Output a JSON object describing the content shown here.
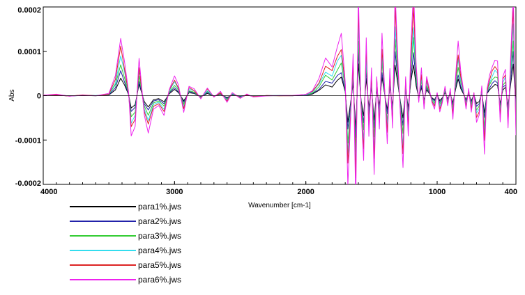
{
  "chart_data": {
    "type": "line",
    "title": "",
    "xlabel": "Wavenumber [cm-1]",
    "ylabel": "Abs",
    "xlim": [
      4000,
      400
    ],
    "ylim": [
      -0.0002,
      0.0002
    ],
    "x_reversed": true,
    "grid": false,
    "legend_position": "bottom-left",
    "x_ticks": [
      {
        "value": 4000,
        "label": "4000"
      },
      {
        "value": 3000,
        "label": "3000"
      },
      {
        "value": 2000,
        "label": "2000"
      },
      {
        "value": 1000,
        "label": "1000"
      },
      {
        "value": 400,
        "label": "400"
      }
    ],
    "y_ticks": [
      {
        "value": 0.0002,
        "label": "0.0002"
      },
      {
        "value": 0.0001,
        "label": "0.0001"
      },
      {
        "value": 0,
        "label": "0"
      },
      {
        "value": -0.0001,
        "label": "-0.0001"
      },
      {
        "value": -0.0002,
        "label": "-0.0002"
      }
    ],
    "zero_line": true,
    "base_shape": {
      "x": [
        4000,
        3900,
        3800,
        3700,
        3600,
        3500,
        3450,
        3410,
        3380,
        3350,
        3330,
        3300,
        3270,
        3230,
        3200,
        3160,
        3120,
        3080,
        3040,
        3000,
        2970,
        2930,
        2890,
        2850,
        2800,
        2750,
        2700,
        2650,
        2600,
        2560,
        2500,
        2450,
        2400,
        2300,
        2200,
        2100,
        2000,
        1950,
        1900,
        1850,
        1800,
        1760,
        1730,
        1700,
        1680,
        1660,
        1640,
        1620,
        1600,
        1580,
        1560,
        1540,
        1520,
        1500,
        1480,
        1460,
        1440,
        1420,
        1400,
        1380,
        1360,
        1340,
        1320,
        1300,
        1280,
        1260,
        1240,
        1220,
        1200,
        1180,
        1160,
        1140,
        1120,
        1100,
        1080,
        1060,
        1040,
        1020,
        1000,
        980,
        960,
        940,
        920,
        900,
        880,
        860,
        840,
        820,
        800,
        780,
        760,
        740,
        720,
        700,
        680,
        660,
        640,
        620,
        600,
        580,
        560,
        540,
        520,
        500,
        480,
        460,
        440,
        420,
        400
      ],
      "shape": [
        0.01,
        0.02,
        -0.01,
        0.01,
        0,
        0.03,
        0.3,
        0.9,
        0.5,
        0.05,
        -0.6,
        -0.45,
        0.55,
        -0.3,
        -0.55,
        -0.2,
        -0.15,
        -0.3,
        0.1,
        0.3,
        0.15,
        -0.25,
        0.15,
        0.1,
        -0.05,
        0.12,
        -0.02,
        0.06,
        -0.1,
        0.05,
        -0.04,
        0.02,
        -0.02,
        0,
        0,
        0,
        0.02,
        0.08,
        0.25,
        0.55,
        0.45,
        0.75,
        0.9,
        0.2,
        -1.3,
        -0.4,
        0.6,
        -1.6,
        1.6,
        -0.2,
        -1.0,
        0.9,
        -0.6,
        0.4,
        -1.2,
        0.3,
        -0.5,
        0.9,
        0.1,
        -0.7,
        0.4,
        -0.5,
        1.6,
        0.6,
        -0.3,
        -1.1,
        0.3,
        -0.6,
        0.7,
        1.6,
        0.5,
        -0.1,
        0.4,
        -0.2,
        0.3,
        0.1,
        -0.1,
        -0.2,
        0.05,
        -0.25,
        -0.1,
        0.15,
        -0.15,
        0.1,
        -0.35,
        0.3,
        0.8,
        0.35,
        0.1,
        -0.2,
        0.1,
        -0.25,
        0.05,
        -0.4,
        -0.3,
        0.15,
        -0.85,
        0.1,
        0.3,
        0.45,
        0.55,
        0.5,
        -0.4,
        0.3,
        0.4,
        -0.5,
        0.6,
        1.6,
        -0.6
      ]
    },
    "series": [
      {
        "name": "para1%.jws",
        "color": "#000000",
        "scale": 4.5e-05
      },
      {
        "name": "para2%.jws",
        "color": "#2222aa",
        "scale": 6e-05
      },
      {
        "name": "para3%.jws",
        "color": "#33cc33",
        "scale": 8e-05
      },
      {
        "name": "para4%.jws",
        "color": "#33ddee",
        "scale": 0.0001
      },
      {
        "name": "para5%.jws",
        "color": "#dd2222",
        "scale": 0.00012
      },
      {
        "name": "para6%.jws",
        "color": "#ee22ee",
        "scale": 0.00015
      }
    ]
  }
}
